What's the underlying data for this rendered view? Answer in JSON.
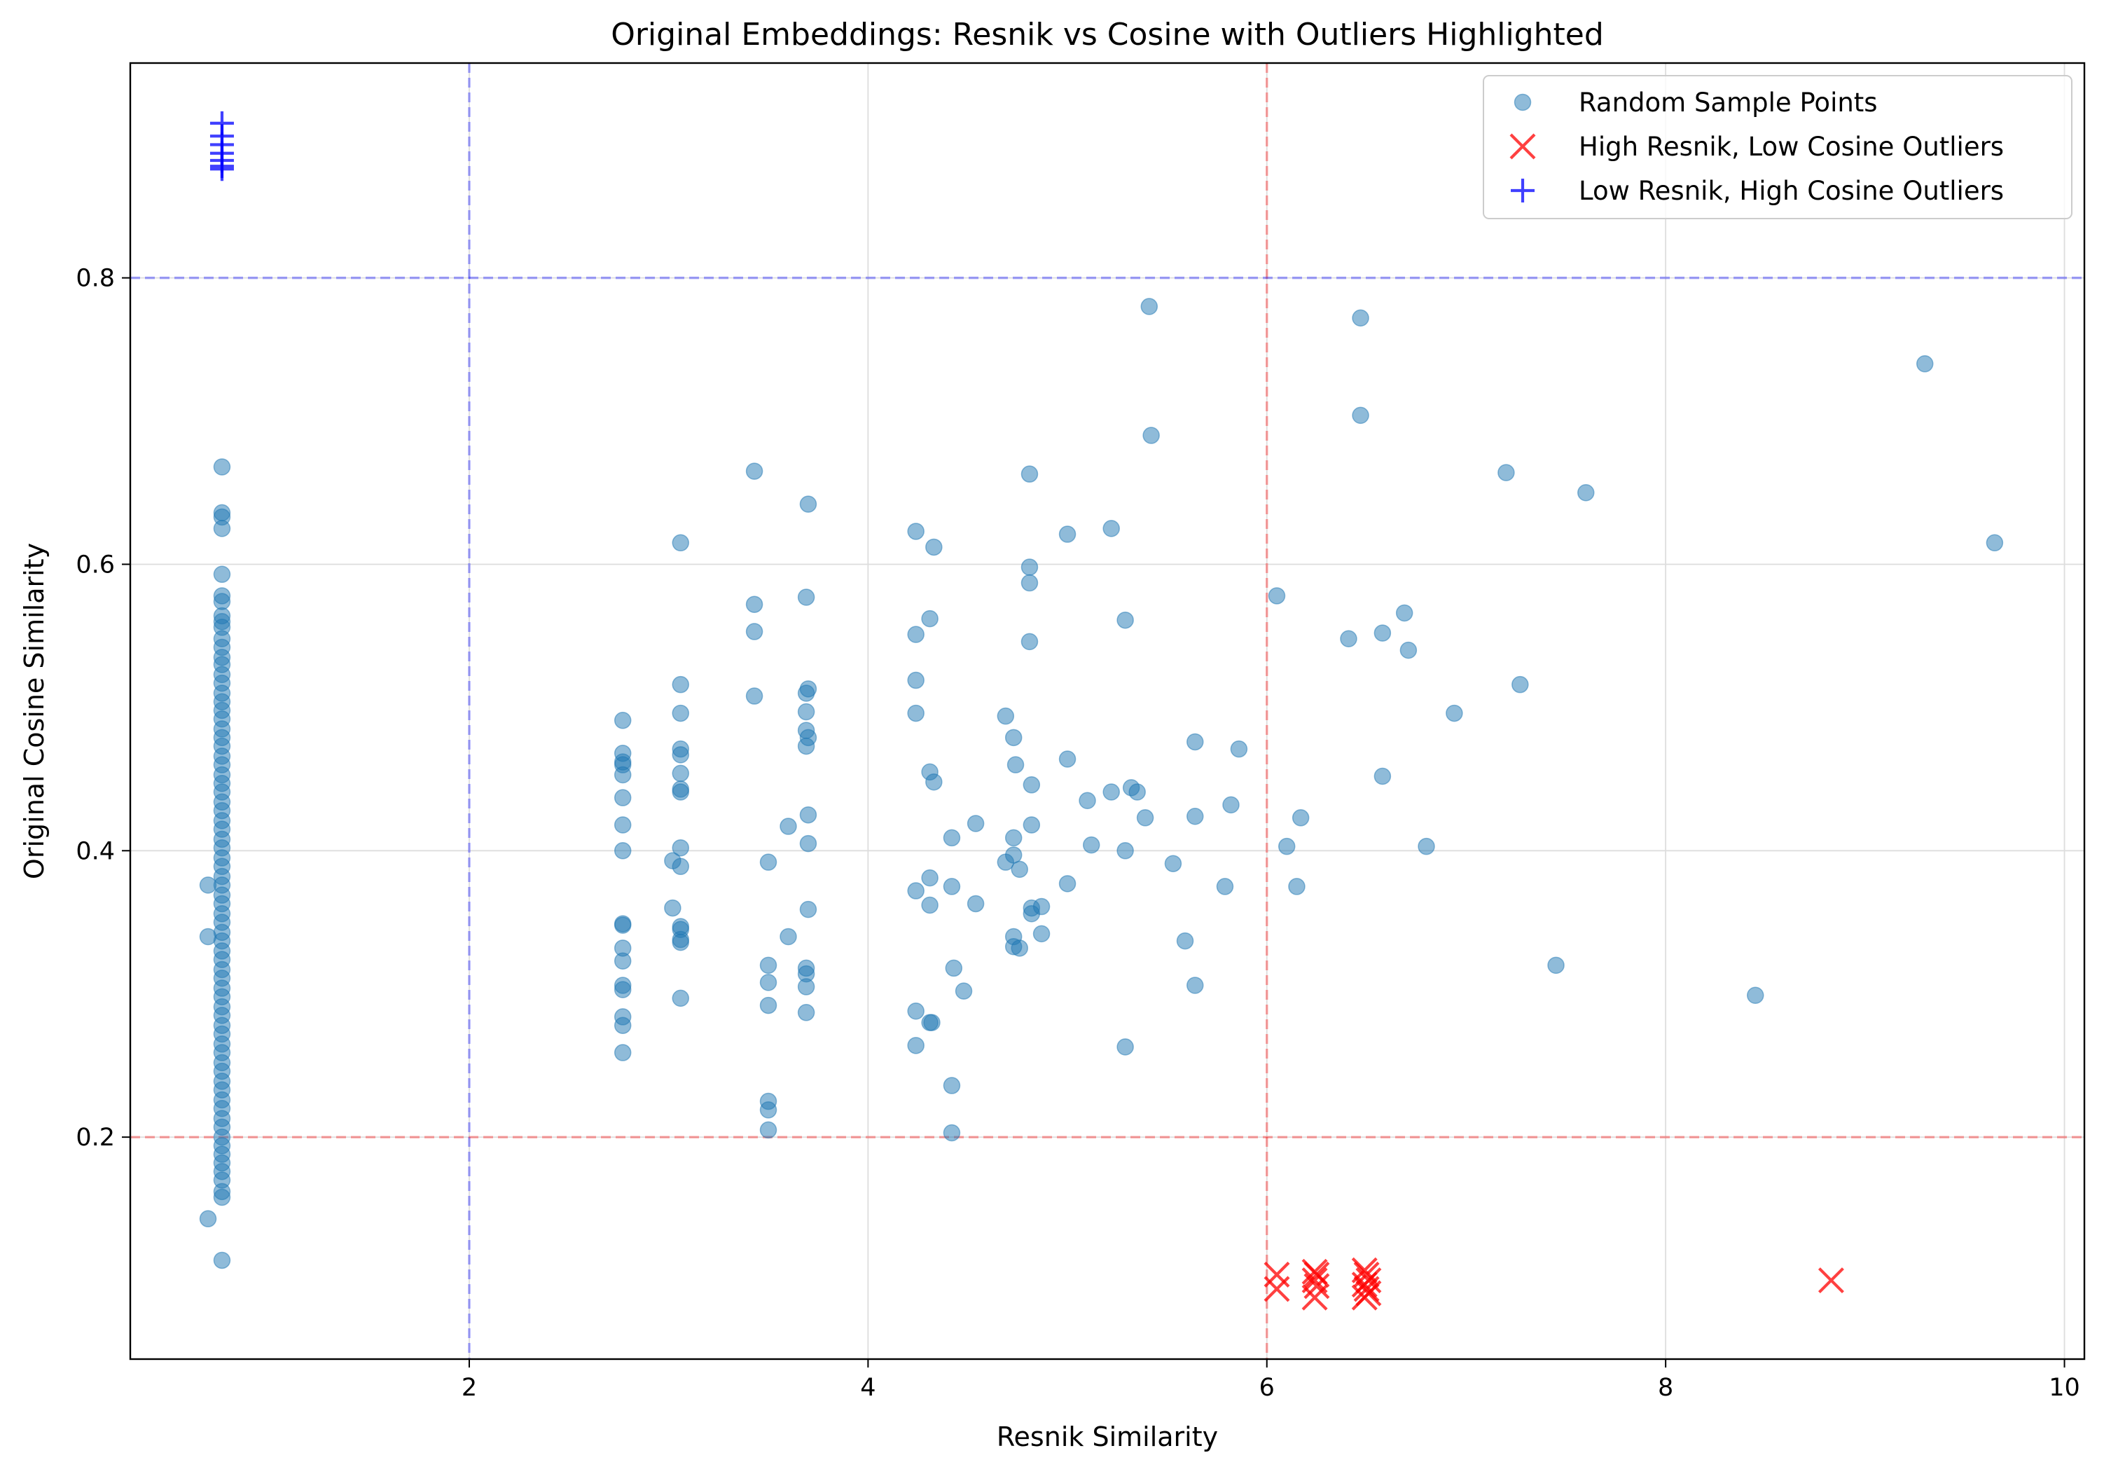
{
  "chart_data": {
    "type": "scatter",
    "title": "Original Embeddings: Resnik vs Cosine with Outliers Highlighted",
    "xlabel": "Resnik Similarity",
    "ylabel": "Original Cosine Similarity",
    "xlim": [
      0.3,
      10.1
    ],
    "ylim": [
      0.045,
      0.95
    ],
    "xticks": [
      2,
      4,
      6,
      8,
      10
    ],
    "yticks": [
      0.2,
      0.4,
      0.6,
      0.8
    ],
    "xtick_labels": [
      "2",
      "4",
      "6",
      "8",
      "10"
    ],
    "ytick_labels": [
      "0.2",
      "0.4",
      "0.6",
      "0.8"
    ],
    "grid": true,
    "legend_position": "top-right",
    "threshold_lines": [
      {
        "orientation": "vertical",
        "value": 2,
        "color": "#0000ff"
      },
      {
        "orientation": "vertical",
        "value": 6,
        "color": "#ff0000"
      },
      {
        "orientation": "horizontal",
        "value": 0.8,
        "color": "#0000ff"
      },
      {
        "orientation": "horizontal",
        "value": 0.2,
        "color": "#ff0000"
      }
    ],
    "series": [
      {
        "name": "Random Sample Points",
        "marker": "circle",
        "color": "#1f77b4",
        "points": [
          [
            0.76,
            0.668
          ],
          [
            0.76,
            0.636
          ],
          [
            0.76,
            0.633
          ],
          [
            0.76,
            0.625
          ],
          [
            0.76,
            0.593
          ],
          [
            0.76,
            0.578
          ],
          [
            0.76,
            0.574
          ],
          [
            0.76,
            0.564
          ],
          [
            0.76,
            0.56
          ],
          [
            0.76,
            0.556
          ],
          [
            0.76,
            0.548
          ],
          [
            0.76,
            0.542
          ],
          [
            0.76,
            0.535
          ],
          [
            0.76,
            0.53
          ],
          [
            0.76,
            0.523
          ],
          [
            0.76,
            0.517
          ],
          [
            0.76,
            0.51
          ],
          [
            0.76,
            0.504
          ],
          [
            0.76,
            0.498
          ],
          [
            0.76,
            0.492
          ],
          [
            0.76,
            0.485
          ],
          [
            0.76,
            0.479
          ],
          [
            0.76,
            0.473
          ],
          [
            0.76,
            0.466
          ],
          [
            0.76,
            0.46
          ],
          [
            0.76,
            0.453
          ],
          [
            0.76,
            0.447
          ],
          [
            0.76,
            0.441
          ],
          [
            0.76,
            0.434
          ],
          [
            0.76,
            0.428
          ],
          [
            0.76,
            0.421
          ],
          [
            0.76,
            0.415
          ],
          [
            0.76,
            0.408
          ],
          [
            0.76,
            0.402
          ],
          [
            0.76,
            0.395
          ],
          [
            0.76,
            0.389
          ],
          [
            0.76,
            0.382
          ],
          [
            0.76,
            0.376
          ],
          [
            0.76,
            0.369
          ],
          [
            0.76,
            0.363
          ],
          [
            0.76,
            0.356
          ],
          [
            0.76,
            0.35
          ],
          [
            0.76,
            0.343
          ],
          [
            0.76,
            0.337
          ],
          [
            0.76,
            0.33
          ],
          [
            0.76,
            0.324
          ],
          [
            0.76,
            0.317
          ],
          [
            0.76,
            0.311
          ],
          [
            0.76,
            0.304
          ],
          [
            0.76,
            0.298
          ],
          [
            0.76,
            0.291
          ],
          [
            0.76,
            0.285
          ],
          [
            0.76,
            0.278
          ],
          [
            0.76,
            0.272
          ],
          [
            0.76,
            0.265
          ],
          [
            0.76,
            0.259
          ],
          [
            0.76,
            0.252
          ],
          [
            0.76,
            0.246
          ],
          [
            0.76,
            0.239
          ],
          [
            0.76,
            0.233
          ],
          [
            0.76,
            0.226
          ],
          [
            0.76,
            0.22
          ],
          [
            0.76,
            0.213
          ],
          [
            0.76,
            0.207
          ],
          [
            0.76,
            0.2
          ],
          [
            0.76,
            0.194
          ],
          [
            0.76,
            0.188
          ],
          [
            0.76,
            0.182
          ],
          [
            0.76,
            0.176
          ],
          [
            0.76,
            0.17
          ],
          [
            0.76,
            0.162
          ],
          [
            0.76,
            0.158
          ],
          [
            0.76,
            0.114
          ],
          [
            0.69,
            0.376
          ],
          [
            0.69,
            0.34
          ],
          [
            0.69,
            0.143
          ],
          [
            2.77,
            0.491
          ],
          [
            2.77,
            0.468
          ],
          [
            2.77,
            0.462
          ],
          [
            2.77,
            0.46
          ],
          [
            2.77,
            0.453
          ],
          [
            2.77,
            0.437
          ],
          [
            2.77,
            0.418
          ],
          [
            2.77,
            0.4
          ],
          [
            2.77,
            0.349
          ],
          [
            2.77,
            0.348
          ],
          [
            2.77,
            0.332
          ],
          [
            2.77,
            0.323
          ],
          [
            2.77,
            0.306
          ],
          [
            2.77,
            0.303
          ],
          [
            2.77,
            0.284
          ],
          [
            2.77,
            0.278
          ],
          [
            2.77,
            0.259
          ],
          [
            3.06,
            0.615
          ],
          [
            3.06,
            0.516
          ],
          [
            3.06,
            0.496
          ],
          [
            3.06,
            0.471
          ],
          [
            3.06,
            0.467
          ],
          [
            3.06,
            0.454
          ],
          [
            3.06,
            0.443
          ],
          [
            3.06,
            0.441
          ],
          [
            3.06,
            0.402
          ],
          [
            3.06,
            0.389
          ],
          [
            3.06,
            0.347
          ],
          [
            3.06,
            0.345
          ],
          [
            3.06,
            0.338
          ],
          [
            3.06,
            0.336
          ],
          [
            3.06,
            0.297
          ],
          [
            3.02,
            0.393
          ],
          [
            3.02,
            0.36
          ],
          [
            3.43,
            0.665
          ],
          [
            3.43,
            0.572
          ],
          [
            3.43,
            0.553
          ],
          [
            3.43,
            0.508
          ],
          [
            3.5,
            0.392
          ],
          [
            3.5,
            0.32
          ],
          [
            3.5,
            0.308
          ],
          [
            3.5,
            0.292
          ],
          [
            3.5,
            0.225
          ],
          [
            3.5,
            0.219
          ],
          [
            3.5,
            0.205
          ],
          [
            3.6,
            0.417
          ],
          [
            3.6,
            0.34
          ],
          [
            3.7,
            0.642
          ],
          [
            3.69,
            0.577
          ],
          [
            3.7,
            0.513
          ],
          [
            3.69,
            0.51
          ],
          [
            3.69,
            0.497
          ],
          [
            3.69,
            0.484
          ],
          [
            3.7,
            0.479
          ],
          [
            3.69,
            0.473
          ],
          [
            3.7,
            0.425
          ],
          [
            3.7,
            0.405
          ],
          [
            3.7,
            0.359
          ],
          [
            3.69,
            0.318
          ],
          [
            3.69,
            0.314
          ],
          [
            3.69,
            0.305
          ],
          [
            3.69,
            0.287
          ],
          [
            4.24,
            0.623
          ],
          [
            4.24,
            0.551
          ],
          [
            4.24,
            0.519
          ],
          [
            4.24,
            0.496
          ],
          [
            4.24,
            0.372
          ],
          [
            4.24,
            0.288
          ],
          [
            4.24,
            0.264
          ],
          [
            4.31,
            0.562
          ],
          [
            4.31,
            0.455
          ],
          [
            4.31,
            0.381
          ],
          [
            4.31,
            0.362
          ],
          [
            4.31,
            0.28
          ],
          [
            4.32,
            0.28
          ],
          [
            4.33,
            0.612
          ],
          [
            4.33,
            0.448
          ],
          [
            4.42,
            0.409
          ],
          [
            4.42,
            0.375
          ],
          [
            4.43,
            0.318
          ],
          [
            4.42,
            0.236
          ],
          [
            4.42,
            0.203
          ],
          [
            4.48,
            0.302
          ],
          [
            4.54,
            0.419
          ],
          [
            4.54,
            0.363
          ],
          [
            4.69,
            0.494
          ],
          [
            4.69,
            0.392
          ],
          [
            4.73,
            0.479
          ],
          [
            4.74,
            0.46
          ],
          [
            4.73,
            0.409
          ],
          [
            4.73,
            0.397
          ],
          [
            4.73,
            0.34
          ],
          [
            4.73,
            0.333
          ],
          [
            4.76,
            0.387
          ],
          [
            4.76,
            0.332
          ],
          [
            4.81,
            0.663
          ],
          [
            4.81,
            0.598
          ],
          [
            4.81,
            0.587
          ],
          [
            4.81,
            0.546
          ],
          [
            4.82,
            0.446
          ],
          [
            4.82,
            0.418
          ],
          [
            4.82,
            0.36
          ],
          [
            4.82,
            0.356
          ],
          [
            4.87,
            0.342
          ],
          [
            4.87,
            0.361
          ],
          [
            5.0,
            0.621
          ],
          [
            5.0,
            0.464
          ],
          [
            5.0,
            0.377
          ],
          [
            5.1,
            0.435
          ],
          [
            5.12,
            0.404
          ],
          [
            5.22,
            0.625
          ],
          [
            5.22,
            0.441
          ],
          [
            5.29,
            0.561
          ],
          [
            5.29,
            0.4
          ],
          [
            5.29,
            0.263
          ],
          [
            5.32,
            0.444
          ],
          [
            5.35,
            0.441
          ],
          [
            5.39,
            0.423
          ],
          [
            5.41,
            0.78
          ],
          [
            5.42,
            0.69
          ],
          [
            5.53,
            0.391
          ],
          [
            5.59,
            0.337
          ],
          [
            5.64,
            0.476
          ],
          [
            5.64,
            0.424
          ],
          [
            5.64,
            0.306
          ],
          [
            5.79,
            0.375
          ],
          [
            5.82,
            0.432
          ],
          [
            5.86,
            0.471
          ],
          [
            6.05,
            0.578
          ],
          [
            6.1,
            0.403
          ],
          [
            6.15,
            0.375
          ],
          [
            6.17,
            0.423
          ],
          [
            6.41,
            0.548
          ],
          [
            6.47,
            0.772
          ],
          [
            6.47,
            0.704
          ],
          [
            6.58,
            0.552
          ],
          [
            6.58,
            0.452
          ],
          [
            6.69,
            0.566
          ],
          [
            6.71,
            0.54
          ],
          [
            6.8,
            0.403
          ],
          [
            6.94,
            0.496
          ],
          [
            7.2,
            0.664
          ],
          [
            7.27,
            0.516
          ],
          [
            7.45,
            0.32
          ],
          [
            7.6,
            0.65
          ],
          [
            8.45,
            0.299
          ],
          [
            9.3,
            0.74
          ],
          [
            9.65,
            0.615
          ]
        ]
      },
      {
        "name": "High Resnik, Low Cosine Outliers",
        "marker": "x",
        "color": "#ff0000",
        "points": [
          [
            6.05,
            0.104
          ],
          [
            6.05,
            0.094
          ],
          [
            6.24,
            0.106
          ],
          [
            6.25,
            0.104
          ],
          [
            6.24,
            0.1
          ],
          [
            6.25,
            0.096
          ],
          [
            6.24,
            0.088
          ],
          [
            6.49,
            0.107
          ],
          [
            6.5,
            0.104
          ],
          [
            6.51,
            0.1
          ],
          [
            6.49,
            0.097
          ],
          [
            6.5,
            0.094
          ],
          [
            6.51,
            0.091
          ],
          [
            6.49,
            0.088
          ],
          [
            8.83,
            0.1
          ]
        ]
      },
      {
        "name": "Low Resnik, High Cosine Outliers",
        "marker": "plus",
        "color": "#0000ff",
        "points": [
          [
            0.76,
            0.908
          ],
          [
            0.76,
            0.899
          ],
          [
            0.76,
            0.893
          ],
          [
            0.76,
            0.887
          ],
          [
            0.76,
            0.882
          ],
          [
            0.76,
            0.878
          ],
          [
            0.76,
            0.876
          ]
        ]
      }
    ]
  }
}
